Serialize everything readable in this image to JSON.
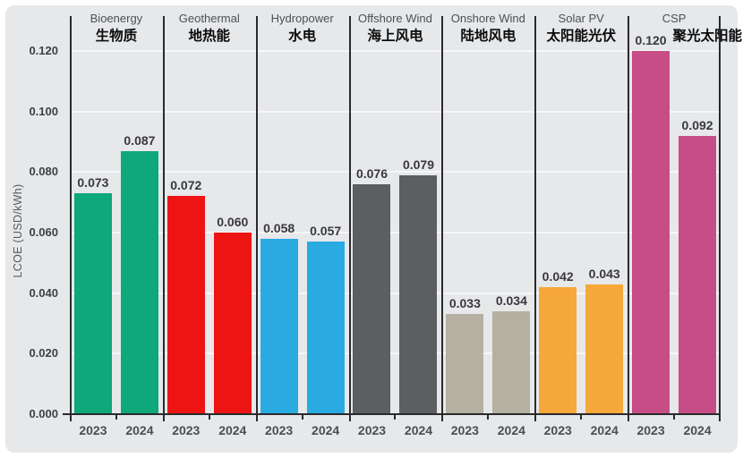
{
  "chart_data": {
    "type": "bar",
    "ylabel": "LCOE (USD/kWh)",
    "ylim": [
      0.0,
      0.12
    ],
    "ytick_step": 0.02,
    "ytick_labels": [
      "0.000",
      "0.020",
      "0.040",
      "0.060",
      "0.080",
      "0.100",
      "0.120"
    ],
    "value_decimals": 3,
    "grid": true,
    "legend_position": "none",
    "x_series": [
      "2023",
      "2024"
    ],
    "categories": [
      {
        "name_en": "Bioenergy",
        "name_zh": "生物质",
        "color": "#0ea87a",
        "values": [
          0.073,
          0.087
        ]
      },
      {
        "name_en": "Geothermal",
        "name_zh": "地热能",
        "color": "#ee1414",
        "values": [
          0.072,
          0.06
        ]
      },
      {
        "name_en": "Hydropower",
        "name_zh": "水电",
        "color": "#29abe2",
        "values": [
          0.058,
          0.057
        ]
      },
      {
        "name_en": "Offshore Wind",
        "name_zh": "海上风电",
        "color": "#5d5e60",
        "values": [
          0.076,
          0.079
        ]
      },
      {
        "name_en": "Onshore Wind",
        "name_zh": "陆地风电",
        "color": "#b5b0a1",
        "values": [
          0.033,
          0.034
        ]
      },
      {
        "name_en": "Solar PV",
        "name_zh": "太阳能光伏",
        "color": "#f7a83a",
        "values": [
          0.042,
          0.043
        ]
      },
      {
        "name_en": "CSP",
        "name_zh": "聚光太阳能",
        "color": "#c74d86",
        "values": [
          0.12,
          0.092
        ]
      }
    ]
  },
  "colors": {
    "panel_bg": "#e6e8ea",
    "axis_line": "#2a2a2c",
    "gridline": "#f6f7f8",
    "value_label_text": "#39393b",
    "header_en_text": "#4d5054",
    "header_zh_text": "#0b0b0c",
    "tick_label_text": "#3e4044"
  }
}
